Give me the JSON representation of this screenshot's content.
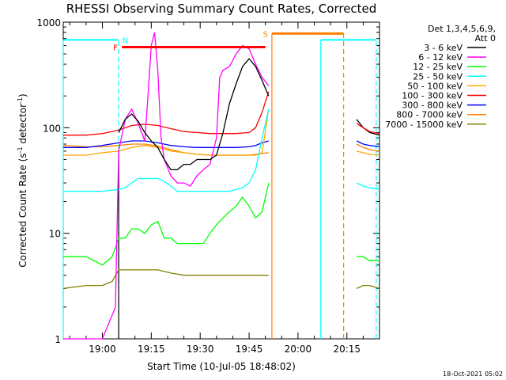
{
  "chart_data": {
    "type": "line",
    "title": "RHESSI Observing Summary Count Rates, Corrected",
    "xlabel": "Start Time (10-Jul-05 18:48:02)",
    "ylabel_main": "Corrected Count Rate (s",
    "ylabel_sup1": "-1",
    "ylabel_mid": " detector",
    "ylabel_sup2": "-1",
    "ylabel_end": ")",
    "yscale": "log",
    "ylim": [
      1,
      1000
    ],
    "yticks": [
      {
        "value": 1,
        "label": "1"
      },
      {
        "value": 10,
        "label": "10"
      },
      {
        "value": 100,
        "label": "100"
      },
      {
        "value": 1000,
        "label": "1000"
      }
    ],
    "xlim": [
      "18:48",
      "20:25"
    ],
    "xticks": [
      {
        "time": "19:00",
        "label": "19:00"
      },
      {
        "time": "19:15",
        "label": "19:15"
      },
      {
        "time": "19:30",
        "label": "19:30"
      },
      {
        "time": "19:45",
        "label": "19:45"
      },
      {
        "time": "20:00",
        "label": "20:00"
      },
      {
        "time": "20:15",
        "label": "20:15"
      }
    ],
    "legend_header": [
      "Det 1,3,4,5,6,9,",
      "Att 0"
    ],
    "legend_placement": "right",
    "timestamp": "18-Oct-2021 05:02",
    "series": [
      {
        "name": "3 - 6 keV",
        "color": "#000000",
        "points": [
          [
            "19:05",
            90
          ],
          [
            "19:07",
            120
          ],
          [
            "19:09",
            135
          ],
          [
            "19:11",
            115
          ],
          [
            "19:13",
            90
          ],
          [
            "19:15",
            75
          ],
          [
            "19:17",
            65
          ],
          [
            "19:19",
            50
          ],
          [
            "19:21",
            40
          ],
          [
            "19:23",
            40
          ],
          [
            "19:25",
            45
          ],
          [
            "19:27",
            45
          ],
          [
            "19:29",
            50
          ],
          [
            "19:31",
            50
          ],
          [
            "19:33",
            50
          ],
          [
            "19:35",
            55
          ],
          [
            "19:37",
            90
          ],
          [
            "19:39",
            170
          ],
          [
            "19:41",
            260
          ],
          [
            "19:43",
            380
          ],
          [
            "19:45",
            450
          ],
          [
            "19:47",
            380
          ],
          [
            "19:49",
            280
          ],
          [
            "19:51",
            200
          ]
        ]
      },
      {
        "name": "6 - 12 keV",
        "color": "#ff00ff",
        "points": [
          [
            "18:48",
            1
          ],
          [
            "19:00",
            1
          ],
          [
            "19:04",
            2
          ],
          [
            "19:05",
            60
          ],
          [
            "19:07",
            120
          ],
          [
            "19:09",
            150
          ],
          [
            "19:11",
            110
          ],
          [
            "19:13",
            75
          ],
          [
            "19:14",
            200
          ],
          [
            "19:15",
            600
          ],
          [
            "19:16",
            800
          ],
          [
            "19:17",
            350
          ],
          [
            "19:18",
            80
          ],
          [
            "19:19",
            50
          ],
          [
            "19:21",
            35
          ],
          [
            "19:23",
            30
          ],
          [
            "19:25",
            30
          ],
          [
            "19:27",
            28
          ],
          [
            "19:29",
            35
          ],
          [
            "19:31",
            40
          ],
          [
            "19:33",
            45
          ],
          [
            "19:35",
            80
          ],
          [
            "19:36",
            300
          ],
          [
            "19:37",
            350
          ],
          [
            "19:39",
            380
          ],
          [
            "19:41",
            500
          ],
          [
            "19:43",
            600
          ],
          [
            "19:45",
            560
          ],
          [
            "19:47",
            400
          ],
          [
            "19:49",
            300
          ],
          [
            "19:51",
            250
          ]
        ]
      },
      {
        "name": "12 - 25 keV",
        "color": "#00ff00",
        "points": [
          [
            "18:48",
            6
          ],
          [
            "18:55",
            6
          ],
          [
            "19:00",
            5
          ],
          [
            "19:03",
            6
          ],
          [
            "19:05",
            9
          ],
          [
            "19:07",
            9
          ],
          [
            "19:09",
            11
          ],
          [
            "19:11",
            11
          ],
          [
            "19:13",
            10
          ],
          [
            "19:15",
            12
          ],
          [
            "19:17",
            13
          ],
          [
            "19:19",
            9
          ],
          [
            "19:21",
            9
          ],
          [
            "19:23",
            8
          ],
          [
            "19:25",
            8
          ],
          [
            "19:27",
            8
          ],
          [
            "19:29",
            8
          ],
          [
            "19:31",
            8
          ],
          [
            "19:33",
            10
          ],
          [
            "19:35",
            12
          ],
          [
            "19:37",
            14
          ],
          [
            "19:39",
            16
          ],
          [
            "19:41",
            18
          ],
          [
            "19:43",
            22
          ],
          [
            "19:45",
            18
          ],
          [
            "19:47",
            14
          ],
          [
            "19:49",
            16
          ],
          [
            "19:51",
            30
          ]
        ]
      },
      {
        "name": "25 - 50 keV",
        "color": "#00ffff",
        "points": [
          [
            "18:48",
            25
          ],
          [
            "18:55",
            25
          ],
          [
            "19:00",
            25
          ],
          [
            "19:05",
            26
          ],
          [
            "19:07",
            27
          ],
          [
            "19:09",
            30
          ],
          [
            "19:11",
            33
          ],
          [
            "19:13",
            33
          ],
          [
            "19:15",
            33
          ],
          [
            "19:17",
            33
          ],
          [
            "19:19",
            31
          ],
          [
            "19:21",
            28
          ],
          [
            "19:23",
            25
          ],
          [
            "19:25",
            25
          ],
          [
            "19:27",
            25
          ],
          [
            "19:29",
            25
          ],
          [
            "19:31",
            25
          ],
          [
            "19:33",
            25
          ],
          [
            "19:35",
            25
          ],
          [
            "19:37",
            25
          ],
          [
            "19:39",
            25
          ],
          [
            "19:41",
            26
          ],
          [
            "19:43",
            27
          ],
          [
            "19:45",
            30
          ],
          [
            "19:47",
            40
          ],
          [
            "19:49",
            80
          ],
          [
            "19:51",
            150
          ]
        ]
      },
      {
        "name": "50 - 100 keV",
        "color": "#ffa500",
        "points": [
          [
            "18:48",
            55
          ],
          [
            "18:55",
            55
          ],
          [
            "19:00",
            58
          ],
          [
            "19:05",
            60
          ],
          [
            "19:09",
            65
          ],
          [
            "19:13",
            68
          ],
          [
            "19:17",
            65
          ],
          [
            "19:21",
            60
          ],
          [
            "19:25",
            58
          ],
          [
            "19:29",
            56
          ],
          [
            "19:33",
            55
          ],
          [
            "19:37",
            55
          ],
          [
            "19:41",
            55
          ],
          [
            "19:45",
            55
          ],
          [
            "19:47",
            55
          ],
          [
            "19:49",
            58
          ],
          [
            "19:51",
            150
          ]
        ]
      },
      {
        "name": "100 - 300 keV",
        "color": "#ff0000",
        "points": [
          [
            "18:48",
            85
          ],
          [
            "18:55",
            85
          ],
          [
            "19:00",
            88
          ],
          [
            "19:05",
            95
          ],
          [
            "19:09",
            105
          ],
          [
            "19:13",
            108
          ],
          [
            "19:17",
            105
          ],
          [
            "19:21",
            98
          ],
          [
            "19:25",
            92
          ],
          [
            "19:29",
            90
          ],
          [
            "19:33",
            88
          ],
          [
            "19:37",
            88
          ],
          [
            "19:41",
            88
          ],
          [
            "19:45",
            90
          ],
          [
            "19:47",
            100
          ],
          [
            "19:49",
            140
          ],
          [
            "19:51",
            220
          ]
        ]
      },
      {
        "name": "300 - 800 keV",
        "color": "#0000ff",
        "points": [
          [
            "18:48",
            65
          ],
          [
            "18:55",
            65
          ],
          [
            "19:00",
            68
          ],
          [
            "19:05",
            72
          ],
          [
            "19:09",
            75
          ],
          [
            "19:13",
            75
          ],
          [
            "19:17",
            72
          ],
          [
            "19:21",
            68
          ],
          [
            "19:25",
            66
          ],
          [
            "19:29",
            65
          ],
          [
            "19:33",
            65
          ],
          [
            "19:37",
            65
          ],
          [
            "19:41",
            65
          ],
          [
            "19:45",
            66
          ],
          [
            "19:47",
            68
          ],
          [
            "19:49",
            72
          ],
          [
            "19:51",
            75
          ]
        ]
      },
      {
        "name": "800 - 7000 keV",
        "color": "#ff8000",
        "points": [
          [
            "18:48",
            68
          ],
          [
            "18:55",
            66
          ],
          [
            "19:00",
            66
          ],
          [
            "19:05",
            68
          ],
          [
            "19:09",
            70
          ],
          [
            "19:13",
            70
          ],
          [
            "19:17",
            67
          ],
          [
            "19:21",
            62
          ],
          [
            "19:25",
            58
          ],
          [
            "19:29",
            56
          ],
          [
            "19:33",
            55
          ],
          [
            "19:37",
            55
          ],
          [
            "19:41",
            55
          ],
          [
            "19:45",
            55
          ],
          [
            "19:47",
            56
          ],
          [
            "19:49",
            57
          ],
          [
            "19:51",
            58
          ]
        ]
      },
      {
        "name": "7000 - 15000 keV",
        "color": "#808000",
        "points": [
          [
            "18:48",
            3
          ],
          [
            "18:55",
            3.2
          ],
          [
            "19:00",
            3.2
          ],
          [
            "19:03",
            3.5
          ],
          [
            "19:05",
            4.5
          ],
          [
            "19:09",
            4.5
          ],
          [
            "19:13",
            4.5
          ],
          [
            "19:17",
            4.5
          ],
          [
            "19:21",
            4.2
          ],
          [
            "19:25",
            4
          ],
          [
            "19:29",
            4
          ],
          [
            "19:33",
            4
          ],
          [
            "19:37",
            4
          ],
          [
            "19:41",
            4
          ],
          [
            "19:45",
            4
          ],
          [
            "19:49",
            4
          ],
          [
            "19:51",
            4
          ]
        ]
      }
    ],
    "second_segment": [
      {
        "series": "3 - 6 keV",
        "points": [
          [
            "20:18",
            120
          ],
          [
            "20:20",
            100
          ],
          [
            "20:22",
            90
          ],
          [
            "20:25",
            85
          ]
        ]
      },
      {
        "series": "100 - 300 keV",
        "points": [
          [
            "20:18",
            110
          ],
          [
            "20:20",
            100
          ],
          [
            "20:22",
            92
          ],
          [
            "20:25",
            88
          ]
        ]
      },
      {
        "series": "300 - 800 keV",
        "points": [
          [
            "20:18",
            75
          ],
          [
            "20:20",
            70
          ],
          [
            "20:22",
            68
          ],
          [
            "20:25",
            66
          ]
        ]
      },
      {
        "series": "800 - 7000 keV",
        "points": [
          [
            "20:18",
            70
          ],
          [
            "20:20",
            65
          ],
          [
            "20:22",
            62
          ],
          [
            "20:25",
            60
          ]
        ]
      },
      {
        "series": "50 - 100 keV",
        "points": [
          [
            "20:18",
            60
          ],
          [
            "20:20",
            58
          ],
          [
            "20:22",
            56
          ],
          [
            "20:25",
            55
          ]
        ]
      },
      {
        "series": "25 - 50 keV",
        "points": [
          [
            "20:18",
            30
          ],
          [
            "20:20",
            28
          ],
          [
            "20:22",
            27
          ],
          [
            "20:25",
            26
          ]
        ]
      },
      {
        "series": "12 - 25 keV",
        "points": [
          [
            "20:18",
            6
          ],
          [
            "20:20",
            6
          ],
          [
            "20:22",
            5.5
          ],
          [
            "20:25",
            5.5
          ]
        ]
      },
      {
        "series": "7000 - 15000 keV",
        "points": [
          [
            "20:18",
            3
          ],
          [
            "20:20",
            3.2
          ],
          [
            "20:22",
            3.2
          ],
          [
            "20:25",
            3
          ]
        ]
      }
    ],
    "annotations": {
      "flag_bars": [
        {
          "label": "F",
          "color": "#ff0000",
          "start": "19:06",
          "end": "19:50",
          "value": 580
        },
        {
          "label": "S",
          "color": "#ff8000",
          "start": "19:52",
          "end": "20:14",
          "value": 780
        }
      ],
      "flag_labels": [
        {
          "text": "F",
          "color": "#ff0000",
          "time": "19:04",
          "value": 580
        },
        {
          "text": "N",
          "color": "#00ffff",
          "time": "19:07",
          "value": 680
        },
        {
          "text": "S",
          "color": "#ff8000",
          "time": "19:50",
          "value": 780
        }
      ],
      "vertical_lines": [
        {
          "time": "18:48",
          "value_top": 680,
          "color": "#00ffff",
          "dashed": false
        },
        {
          "time": "19:05",
          "value_top": 680,
          "color": "#00ffff",
          "dashed": true
        },
        {
          "time": "19:05",
          "value_top": 60,
          "color": "#000000",
          "dashed": false
        },
        {
          "time": "19:52",
          "value_top": 780,
          "color": "#ff8000",
          "dashed": false
        },
        {
          "time": "20:07",
          "value_top": 680,
          "color": "#00ffff",
          "dashed": false
        },
        {
          "time": "20:14",
          "value_top": 780,
          "color": "#ff8000",
          "dashed": true
        },
        {
          "time": "20:24",
          "value_top": 680,
          "color": "#00ffff",
          "dashed": true
        }
      ],
      "horizontal_lines": [
        {
          "color": "#00ffff",
          "start": "18:48",
          "end": "19:05",
          "value": 680
        },
        {
          "color": "#00ffff",
          "start": "20:07",
          "end": "20:24",
          "value": 680
        }
      ]
    }
  }
}
